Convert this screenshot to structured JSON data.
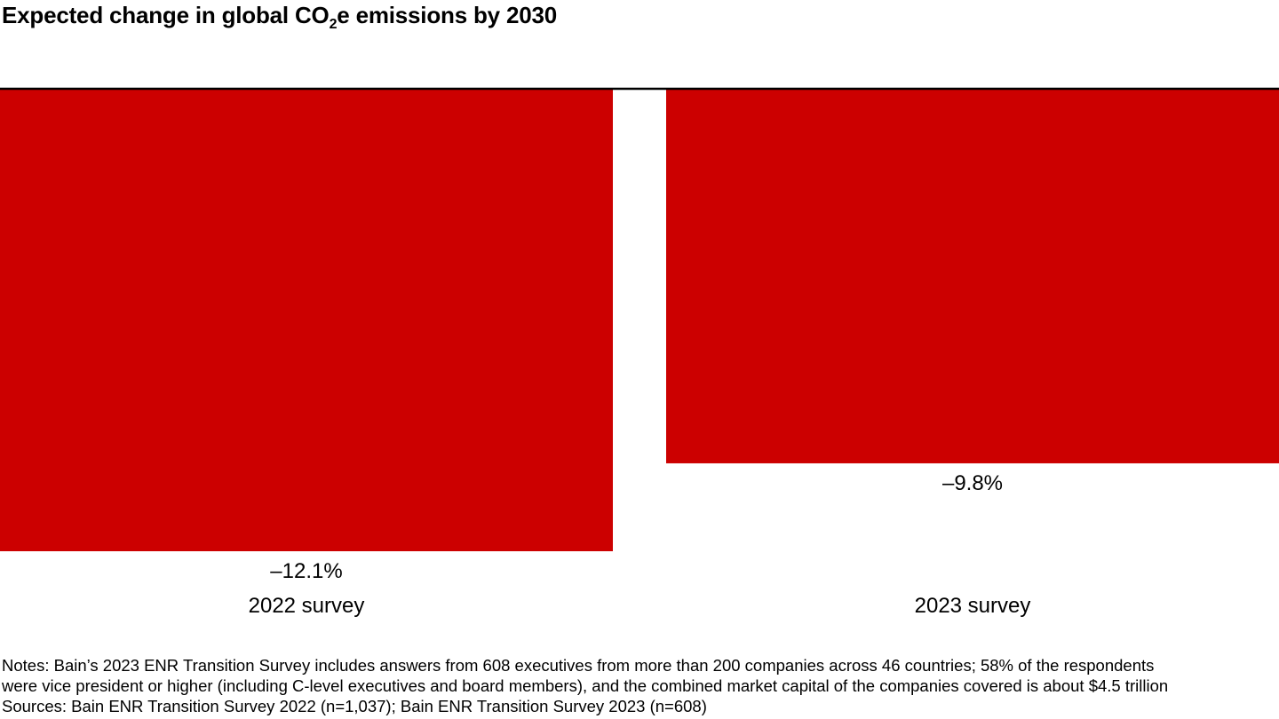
{
  "chart_data": {
    "type": "bar",
    "orientation": "vertical-negative",
    "title_parts": {
      "before": "Expected change in global CO",
      "subscript": "2",
      "after": "e emissions by 2030"
    },
    "categories": [
      "2022 survey",
      "2023 survey"
    ],
    "values": [
      -12.1,
      -9.8
    ],
    "value_labels": [
      "–12.1%",
      "–9.8%"
    ],
    "xlabel": "",
    "ylabel": "",
    "ylim": [
      -12.1,
      0
    ],
    "grid": false,
    "legend": "none",
    "bar_color": "#cc0000",
    "axis_color": "#000000"
  },
  "footer": {
    "notes_line1": "Notes: Bain’s 2023 ENR Transition Survey includes answers from 608 executives from more than 200 companies across 46 countries; 58% of the respondents",
    "notes_line2": "were vice president or higher (including C-level executives and board members), and the combined market capital of the companies covered is about $4.5 trillion",
    "sources": "Sources: Bain ENR Transition Survey 2022 (n=1,037); Bain ENR Transition Survey 2023 (n=608)"
  }
}
